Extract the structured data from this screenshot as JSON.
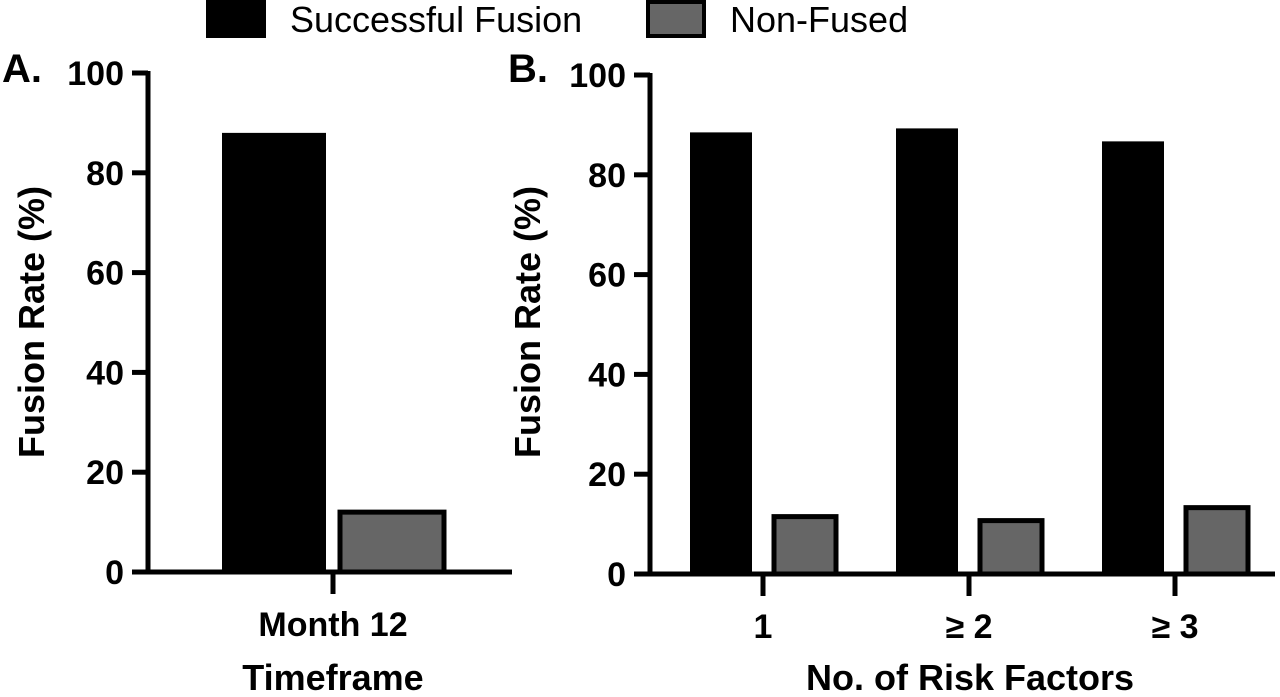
{
  "legend": {
    "items": [
      {
        "label": "Successful Fusion",
        "color": "#000000"
      },
      {
        "label": "Non-Fused",
        "color": "#666666"
      }
    ],
    "placement": "top-center"
  },
  "chart_data": [
    {
      "type": "bar",
      "panel_label": "A.",
      "categories": [
        "Month 12"
      ],
      "series": [
        {
          "name": "Successful Fusion",
          "values": [
            88
          ]
        },
        {
          "name": "Non-Fused",
          "values": [
            12
          ]
        }
      ],
      "xlabel": "Timeframe",
      "ylabel": "Fusion Rate (%)",
      "ylim": [
        0,
        100
      ],
      "yticks": [
        0,
        20,
        40,
        60,
        80,
        100
      ],
      "grid": false
    },
    {
      "type": "bar",
      "panel_label": "B.",
      "categories": [
        "1",
        "≥ 2",
        "≥ 3"
      ],
      "series": [
        {
          "name": "Successful Fusion",
          "values": [
            88.5,
            89.3,
            86.7
          ]
        },
        {
          "name": "Non-Fused",
          "values": [
            11.5,
            10.7,
            13.3
          ]
        }
      ],
      "xlabel": "No. of Risk Factors",
      "ylabel": "Fusion Rate (%)",
      "ylim": [
        0,
        100
      ],
      "yticks": [
        0,
        20,
        40,
        60,
        80,
        100
      ],
      "grid": false
    }
  ]
}
